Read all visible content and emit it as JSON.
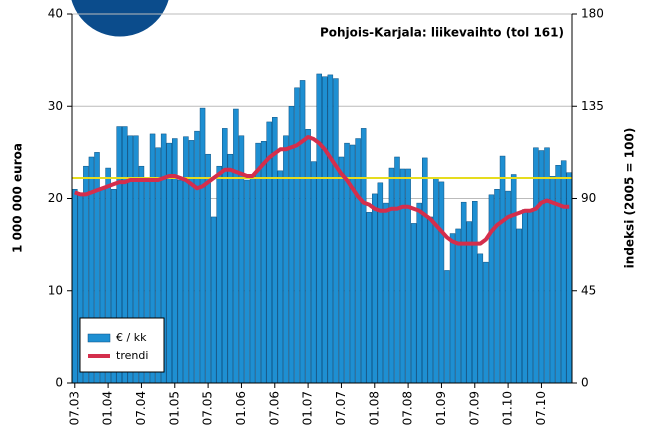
{
  "chart_data": {
    "type": "bar",
    "title": "Pohjois-Karjala: liikevaihto (tol 161)",
    "ylabel": "1 000 000 euroa",
    "y2label": "indeksi (2005 = 100)",
    "categories": [
      "07.03",
      null,
      null,
      null,
      null,
      null,
      "01.04",
      null,
      null,
      null,
      null,
      null,
      "07.04",
      null,
      null,
      null,
      null,
      null,
      "01.05",
      null,
      null,
      null,
      null,
      null,
      "07.05",
      null,
      null,
      null,
      null,
      null,
      "01.06",
      null,
      null,
      null,
      null,
      null,
      "07.06",
      null,
      null,
      null,
      null,
      null,
      "01.07",
      null,
      null,
      null,
      null,
      null,
      "07.07",
      null,
      null,
      null,
      null,
      null,
      "01.08",
      null,
      null,
      null,
      null,
      null,
      "07.08",
      null,
      null,
      null,
      null,
      null,
      "01.09",
      null,
      null,
      null,
      null,
      null,
      "07.09",
      null,
      null,
      null,
      null,
      null,
      "01.10",
      null,
      null,
      null,
      null,
      null,
      "07.10",
      null,
      null,
      null,
      null,
      null
    ],
    "series": [
      {
        "name": "€ / kk",
        "type": "bar",
        "color": "#1e8fd2",
        "values": [
          21,
          20.5,
          23.5,
          24.5,
          25,
          21,
          23.3,
          21,
          27.8,
          27.8,
          26.8,
          26.8,
          23.5,
          22,
          27,
          25.5,
          27,
          26,
          26.5,
          22,
          26.7,
          26.3,
          27.3,
          29.8,
          24.8,
          18,
          23.5,
          27.6,
          24.8,
          29.7,
          26.8,
          22,
          22.5,
          26,
          26.2,
          28.3,
          28.8,
          23,
          26.8,
          30,
          32,
          32.8,
          27.5,
          24,
          33.5,
          33.2,
          33.4,
          33,
          24.5,
          26,
          25.8,
          26.5,
          27.6,
          18.5,
          20.5,
          21.7,
          19.5,
          23.3,
          24.5,
          23.2,
          23.2,
          17.3,
          19.5,
          24.4,
          18,
          22.3,
          21.8,
          12.2,
          16.2,
          16.7,
          19.6,
          17.5,
          19.7,
          14,
          13.1,
          20.4,
          21,
          24.6,
          20.8,
          22.6,
          16.7,
          18.8,
          18.7,
          25.5,
          25.2,
          25.5,
          22.4,
          23.6,
          24.1,
          22.8
        ]
      },
      {
        "name": "trendi",
        "type": "line",
        "axis": "y2",
        "color": "#d42e4c",
        "values": [
          93,
          92,
          92,
          93,
          94,
          95,
          96,
          97,
          98,
          98,
          99,
          99,
          99,
          99,
          99,
          99,
          100,
          101,
          101,
          100,
          99,
          97,
          95,
          96,
          98,
          100,
          102,
          104,
          104,
          103,
          102,
          101,
          101,
          104,
          107,
          110,
          112,
          114,
          114,
          115,
          116,
          118,
          120,
          119,
          117,
          114,
          110,
          106,
          102,
          99,
          95,
          91,
          88,
          87,
          85,
          84,
          84,
          85,
          85,
          86,
          86,
          85,
          84,
          82,
          80,
          77,
          74,
          71,
          69,
          68,
          68,
          68,
          68,
          68,
          70,
          74,
          77,
          79,
          81,
          82,
          83,
          84,
          84,
          85,
          88,
          89,
          88,
          87,
          86,
          86
        ]
      }
    ],
    "reference_line": {
      "value": 100,
      "axis": "y2",
      "color": "#e6dc1e"
    },
    "ylim": [
      0,
      40
    ],
    "yticks": [
      0,
      10,
      20,
      30,
      40
    ],
    "y2lim": [
      0,
      180
    ],
    "y2ticks": [
      0,
      45,
      90,
      135,
      180
    ],
    "grid": true,
    "legend": "lower left"
  }
}
